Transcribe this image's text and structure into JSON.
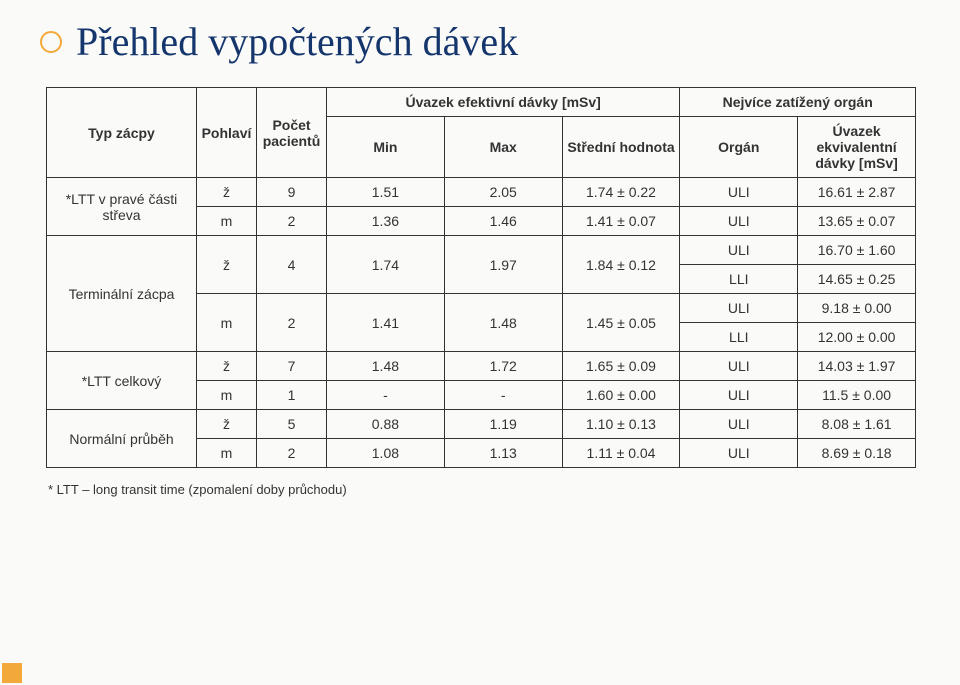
{
  "title": "Přehled vypočtených dávek",
  "headers": {
    "type": "Typ zácpy",
    "sex": "Pohlaví",
    "count": "Počet pacientů",
    "effDose": "Úvazek efektivní dávky [mSv]",
    "min": "Min",
    "max": "Max",
    "mid": "Střední hodnota",
    "mostLoaded": "Nejvíce zatížený orgán",
    "organ": "Orgán",
    "eqDose": "Úvazek ekvivalentní dávky [mSv]"
  },
  "rows": [
    {
      "cat": "*LTT v pravé části střeva",
      "sub": [
        {
          "sex": "ž",
          "n": "9",
          "min": "1.51",
          "max": "2.05",
          "mid": "1.74 ± 0.22",
          "organs": [
            {
              "o": "ULI",
              "d": "16.61 ± 2.87"
            }
          ]
        },
        {
          "sex": "m",
          "n": "2",
          "min": "1.36",
          "max": "1.46",
          "mid": "1.41 ± 0.07",
          "organs": [
            {
              "o": "ULI",
              "d": "13.65 ± 0.07"
            }
          ]
        }
      ]
    },
    {
      "cat": "Terminální zácpa",
      "sub": [
        {
          "sex": "ž",
          "n": "4",
          "min": "1.74",
          "max": "1.97",
          "mid": "1.84 ± 0.12",
          "organs": [
            {
              "o": "ULI",
              "d": "16.70 ± 1.60"
            },
            {
              "o": "LLI",
              "d": "14.65 ± 0.25"
            }
          ]
        },
        {
          "sex": "m",
          "n": "2",
          "min": "1.41",
          "max": "1.48",
          "mid": "1.45 ± 0.05",
          "organs": [
            {
              "o": "ULI",
              "d": "9.18 ± 0.00"
            },
            {
              "o": "LLI",
              "d": "12.00 ± 0.00"
            }
          ]
        }
      ]
    },
    {
      "cat": "*LTT celkový",
      "sub": [
        {
          "sex": "ž",
          "n": "7",
          "min": "1.48",
          "max": "1.72",
          "mid": "1.65 ± 0.09",
          "organs": [
            {
              "o": "ULI",
              "d": "14.03 ± 1.97"
            }
          ]
        },
        {
          "sex": "m",
          "n": "1",
          "min": "-",
          "max": "-",
          "mid": "1.60 ± 0.00",
          "organs": [
            {
              "o": "ULI",
              "d": "11.5 ± 0.00"
            }
          ]
        }
      ]
    },
    {
      "cat": "Normální průběh",
      "sub": [
        {
          "sex": "ž",
          "n": "5",
          "min": "0.88",
          "max": "1.19",
          "mid": "1.10 ± 0.13",
          "organs": [
            {
              "o": "ULI",
              "d": "8.08 ± 1.61"
            }
          ]
        },
        {
          "sex": "m",
          "n": "2",
          "min": "1.08",
          "max": "1.13",
          "mid": "1.11 ± 0.04",
          "organs": [
            {
              "o": "ULI",
              "d": "8.69 ± 0.18"
            }
          ]
        }
      ]
    }
  ],
  "footnote": "* LTT – long transit time (zpomalení doby průchodu)"
}
